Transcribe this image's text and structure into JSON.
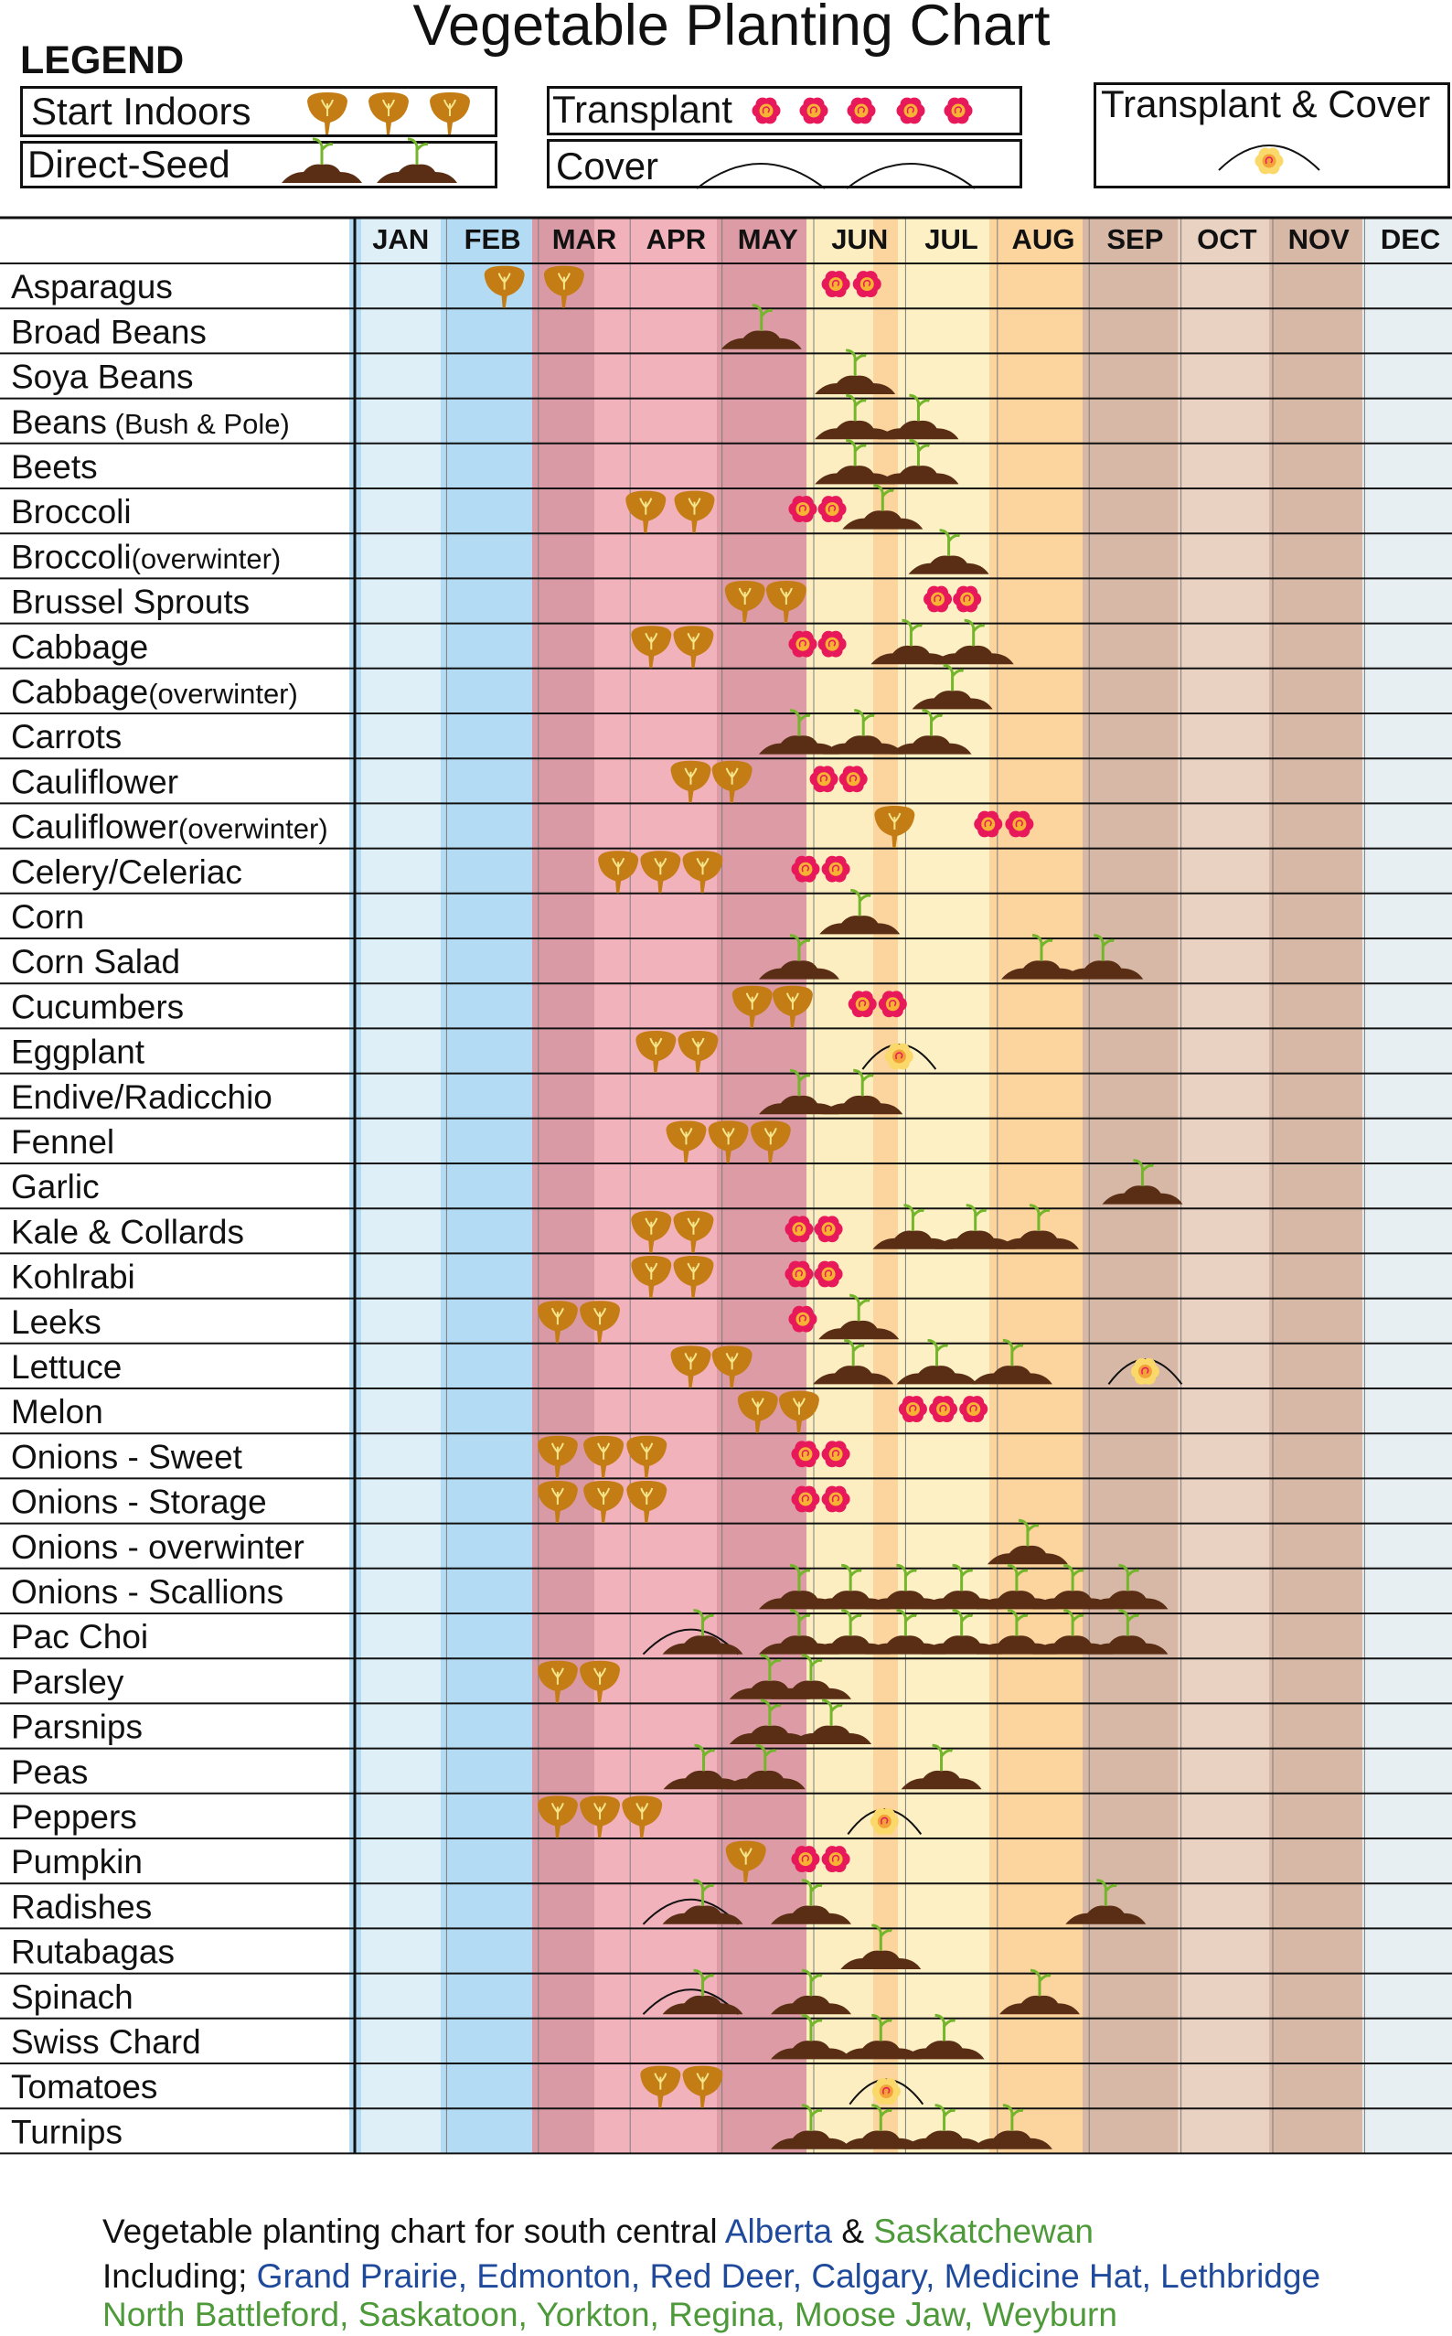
{
  "title": "Vegetable Planting Chart",
  "legend": {
    "heading": "LEGEND",
    "start_indoors": "Start Indoors",
    "direct_seed": "Direct-Seed",
    "transplant": "Transplant",
    "cover": "Cover",
    "transplant_cover": "Transplant & Cover"
  },
  "colors": {
    "seed": "#c47c14",
    "soil": "#5a2e14",
    "sprout": "#74b62b",
    "flower": "#e8195a",
    "flower_center": "#f7b233",
    "month_bands": [
      "#b3dcf4",
      "#deeff8",
      "#b3dcf4",
      "#d99aa5",
      "#f1b2bb",
      "#dc9ba5",
      "#fdeec2",
      "#fbd49e",
      "#fdf0c4",
      "#fbd49e",
      "#d7b8a6",
      "#e9d2c2",
      "#d7b8a6",
      "#e7eff3"
    ]
  },
  "chart_data": {
    "type": "table",
    "title": "Vegetable Planting Chart",
    "months": [
      "JAN",
      "FEB",
      "MAR",
      "APR",
      "MAY",
      "JUN",
      "JUL",
      "AUG",
      "SEP",
      "OCT",
      "NOV",
      "DEC"
    ],
    "position_unit": "month index (0 = start of JAN, 12 = end of DEC)",
    "actions": [
      "start_indoors",
      "direct_seed",
      "transplant",
      "cover",
      "transplant_cover"
    ],
    "crops": [
      {
        "name": "Asparagus",
        "note": "",
        "marks": [
          [
            "start_indoors",
            1.63
          ],
          [
            "start_indoors",
            2.28
          ],
          [
            "transplant",
            5.24
          ],
          [
            "transplant",
            5.58
          ]
        ]
      },
      {
        "name": "Broad Beans",
        "note": "",
        "marks": [
          [
            "direct_seed",
            4.43
          ]
        ]
      },
      {
        "name": "Soya Beans",
        "note": "",
        "marks": [
          [
            "direct_seed",
            5.45
          ]
        ]
      },
      {
        "name": "Beans",
        "note": "(Bush & Pole)",
        "marks": [
          [
            "direct_seed",
            5.45
          ],
          [
            "direct_seed",
            6.14
          ]
        ]
      },
      {
        "name": "Beets",
        "note": "",
        "marks": [
          [
            "direct_seed",
            5.45
          ],
          [
            "direct_seed",
            6.14
          ]
        ]
      },
      {
        "name": "Broccoli",
        "note": "",
        "marks": [
          [
            "start_indoors",
            3.17
          ],
          [
            "start_indoors",
            3.7
          ],
          [
            "transplant",
            4.88
          ],
          [
            "transplant",
            5.2
          ],
          [
            "direct_seed",
            5.75
          ]
        ]
      },
      {
        "name": "Broccoli",
        "note": "(overwinter)",
        "marks": [
          [
            "direct_seed",
            6.47
          ]
        ]
      },
      {
        "name": "Brussel Sprouts",
        "note": "",
        "marks": [
          [
            "start_indoors",
            4.25
          ],
          [
            "start_indoors",
            4.7
          ],
          [
            "transplant",
            6.35
          ],
          [
            "transplant",
            6.67
          ]
        ]
      },
      {
        "name": "Cabbage",
        "note": "",
        "marks": [
          [
            "start_indoors",
            3.23
          ],
          [
            "start_indoors",
            3.69
          ],
          [
            "transplant",
            4.88
          ],
          [
            "transplant",
            5.2
          ],
          [
            "direct_seed",
            6.06
          ],
          [
            "direct_seed",
            6.74
          ]
        ]
      },
      {
        "name": "Cabbage",
        "note": "(overwinter)",
        "marks": [
          [
            "direct_seed",
            6.51
          ]
        ]
      },
      {
        "name": "Carrots",
        "note": "",
        "marks": [
          [
            "direct_seed",
            4.84
          ],
          [
            "direct_seed",
            5.54
          ],
          [
            "direct_seed",
            6.28
          ]
        ]
      },
      {
        "name": "Cauliflower",
        "note": "",
        "marks": [
          [
            "start_indoors",
            3.66
          ],
          [
            "start_indoors",
            4.11
          ],
          [
            "transplant",
            5.11
          ],
          [
            "transplant",
            5.43
          ]
        ]
      },
      {
        "name": "Cauliflower",
        "note": "(overwinter)",
        "marks": [
          [
            "start_indoors",
            5.88
          ],
          [
            "transplant",
            6.9
          ],
          [
            "transplant",
            7.24
          ]
        ]
      },
      {
        "name": "Celery/Celeriac",
        "note": "",
        "marks": [
          [
            "start_indoors",
            2.87
          ],
          [
            "start_indoors",
            3.33
          ],
          [
            "start_indoors",
            3.79
          ],
          [
            "transplant",
            4.91
          ],
          [
            "transplant",
            5.24
          ]
        ]
      },
      {
        "name": "Corn",
        "note": "",
        "marks": [
          [
            "direct_seed",
            5.5
          ]
        ]
      },
      {
        "name": "Corn Salad",
        "note": "",
        "marks": [
          [
            "direct_seed",
            4.84
          ],
          [
            "direct_seed",
            7.48
          ],
          [
            "direct_seed",
            8.15
          ]
        ]
      },
      {
        "name": "Cucumbers",
        "note": "",
        "marks": [
          [
            "start_indoors",
            4.33
          ],
          [
            "start_indoors",
            4.77
          ],
          [
            "transplant",
            5.53
          ],
          [
            "transplant",
            5.86
          ]
        ]
      },
      {
        "name": "Eggplant",
        "note": "",
        "marks": [
          [
            "start_indoors",
            3.28
          ],
          [
            "start_indoors",
            3.74
          ],
          [
            "transplant_cover",
            5.93
          ]
        ]
      },
      {
        "name": "Endive/Radicchio",
        "note": "",
        "marks": [
          [
            "direct_seed",
            4.84
          ],
          [
            "direct_seed",
            5.53
          ]
        ]
      },
      {
        "name": "Fennel",
        "note": "",
        "marks": [
          [
            "start_indoors",
            3.61
          ],
          [
            "start_indoors",
            4.07
          ],
          [
            "start_indoors",
            4.53
          ]
        ]
      },
      {
        "name": "Garlic",
        "note": "",
        "marks": [
          [
            "direct_seed",
            8.58
          ]
        ]
      },
      {
        "name": "Kale & Collards",
        "note": "",
        "marks": [
          [
            "start_indoors",
            3.23
          ],
          [
            "start_indoors",
            3.69
          ],
          [
            "transplant",
            4.84
          ],
          [
            "transplant",
            5.16
          ],
          [
            "direct_seed",
            6.08
          ],
          [
            "direct_seed",
            6.76
          ],
          [
            "direct_seed",
            7.45
          ]
        ]
      },
      {
        "name": "Kohlrabi",
        "note": "",
        "marks": [
          [
            "start_indoors",
            3.23
          ],
          [
            "start_indoors",
            3.69
          ],
          [
            "transplant",
            4.84
          ],
          [
            "transplant",
            5.16
          ]
        ]
      },
      {
        "name": "Leeks",
        "note": "",
        "marks": [
          [
            "start_indoors",
            2.21
          ],
          [
            "start_indoors",
            2.67
          ],
          [
            "transplant",
            4.88
          ],
          [
            "direct_seed",
            5.49
          ]
        ]
      },
      {
        "name": "Lettuce",
        "note": "",
        "marks": [
          [
            "start_indoors",
            3.66
          ],
          [
            "start_indoors",
            4.11
          ],
          [
            "direct_seed",
            5.43
          ],
          [
            "direct_seed",
            6.34
          ],
          [
            "direct_seed",
            7.16
          ],
          [
            "transplant_cover",
            8.61
          ]
        ]
      },
      {
        "name": "Melon",
        "note": "",
        "marks": [
          [
            "start_indoors",
            4.39
          ],
          [
            "start_indoors",
            4.84
          ],
          [
            "transplant",
            6.08
          ],
          [
            "transplant",
            6.41
          ],
          [
            "transplant",
            6.74
          ]
        ]
      },
      {
        "name": "Onions - Sweet",
        "note": "",
        "marks": [
          [
            "start_indoors",
            2.21
          ],
          [
            "start_indoors",
            2.71
          ],
          [
            "start_indoors",
            3.18
          ],
          [
            "transplant",
            4.91
          ],
          [
            "transplant",
            5.24
          ]
        ]
      },
      {
        "name": "Onions - Storage",
        "note": "",
        "marks": [
          [
            "start_indoors",
            2.21
          ],
          [
            "start_indoors",
            2.71
          ],
          [
            "start_indoors",
            3.18
          ],
          [
            "transplant",
            4.91
          ],
          [
            "transplant",
            5.24
          ]
        ]
      },
      {
        "name": "Onions - overwinter",
        "note": "",
        "marks": [
          [
            "direct_seed",
            7.33
          ]
        ]
      },
      {
        "name": "Onions - Scallions",
        "note": "",
        "marks": [
          [
            "direct_seed",
            4.84
          ],
          [
            "direct_seed",
            5.4
          ],
          [
            "direct_seed",
            6.0
          ],
          [
            "direct_seed",
            6.61
          ],
          [
            "direct_seed",
            7.21
          ],
          [
            "direct_seed",
            7.82
          ],
          [
            "direct_seed",
            8.42
          ]
        ]
      },
      {
        "name": "Pac Choi",
        "note": "",
        "marks": [
          [
            "cover",
            3.66
          ],
          [
            "direct_seed",
            3.79
          ],
          [
            "direct_seed",
            4.84
          ],
          [
            "direct_seed",
            5.4
          ],
          [
            "direct_seed",
            6.0
          ],
          [
            "direct_seed",
            6.61
          ],
          [
            "direct_seed",
            7.21
          ],
          [
            "direct_seed",
            7.82
          ],
          [
            "direct_seed",
            8.42
          ]
        ]
      },
      {
        "name": "Parsley",
        "note": "",
        "marks": [
          [
            "start_indoors",
            2.21
          ],
          [
            "start_indoors",
            2.67
          ],
          [
            "direct_seed",
            4.52
          ],
          [
            "direct_seed",
            4.97
          ]
        ]
      },
      {
        "name": "Parsnips",
        "note": "",
        "marks": [
          [
            "direct_seed",
            4.52
          ],
          [
            "direct_seed",
            5.19
          ]
        ]
      },
      {
        "name": "Peas",
        "note": "",
        "marks": [
          [
            "direct_seed",
            3.8
          ],
          [
            "direct_seed",
            4.47
          ],
          [
            "direct_seed",
            6.39
          ]
        ]
      },
      {
        "name": "Peppers",
        "note": "",
        "marks": [
          [
            "start_indoors",
            2.21
          ],
          [
            "start_indoors",
            2.67
          ],
          [
            "start_indoors",
            3.13
          ],
          [
            "transplant_cover",
            5.77
          ]
        ]
      },
      {
        "name": "Pumpkin",
        "note": "",
        "marks": [
          [
            "start_indoors",
            4.26
          ],
          [
            "transplant",
            4.91
          ],
          [
            "transplant",
            5.24
          ]
        ]
      },
      {
        "name": "Radishes",
        "note": "",
        "marks": [
          [
            "cover",
            3.66
          ],
          [
            "direct_seed",
            3.79
          ],
          [
            "direct_seed",
            4.97
          ],
          [
            "direct_seed",
            8.18
          ]
        ]
      },
      {
        "name": "Rutabagas",
        "note": "",
        "marks": [
          [
            "direct_seed",
            5.73
          ]
        ]
      },
      {
        "name": "Spinach",
        "note": "",
        "marks": [
          [
            "cover",
            3.66
          ],
          [
            "direct_seed",
            3.79
          ],
          [
            "direct_seed",
            4.97
          ],
          [
            "direct_seed",
            7.46
          ]
        ]
      },
      {
        "name": "Swiss Chard",
        "note": "",
        "marks": [
          [
            "direct_seed",
            4.97
          ],
          [
            "direct_seed",
            5.73
          ],
          [
            "direct_seed",
            6.42
          ]
        ]
      },
      {
        "name": "Tomatoes",
        "note": "",
        "marks": [
          [
            "start_indoors",
            3.33
          ],
          [
            "start_indoors",
            3.79
          ],
          [
            "transplant_cover",
            5.79
          ]
        ]
      },
      {
        "name": "Turnips",
        "note": "",
        "marks": [
          [
            "direct_seed",
            4.97
          ],
          [
            "direct_seed",
            5.73
          ],
          [
            "direct_seed",
            6.42
          ],
          [
            "direct_seed",
            7.16
          ]
        ]
      }
    ]
  },
  "footer": {
    "line1_prefix": "Vegetable planting chart for south central ",
    "province_ab": "Alberta",
    "and": " & ",
    "province_sk": "Saskatchewan",
    "line2_prefix": "Including; ",
    "cities_ab": "Grand Prairie, Edmonton, Red Deer, Calgary, Medicine Hat, Lethbridge",
    "cities_sk": "North Battleford, Saskatoon, Yorkton, Regina, Moose Jaw, Weyburn"
  }
}
